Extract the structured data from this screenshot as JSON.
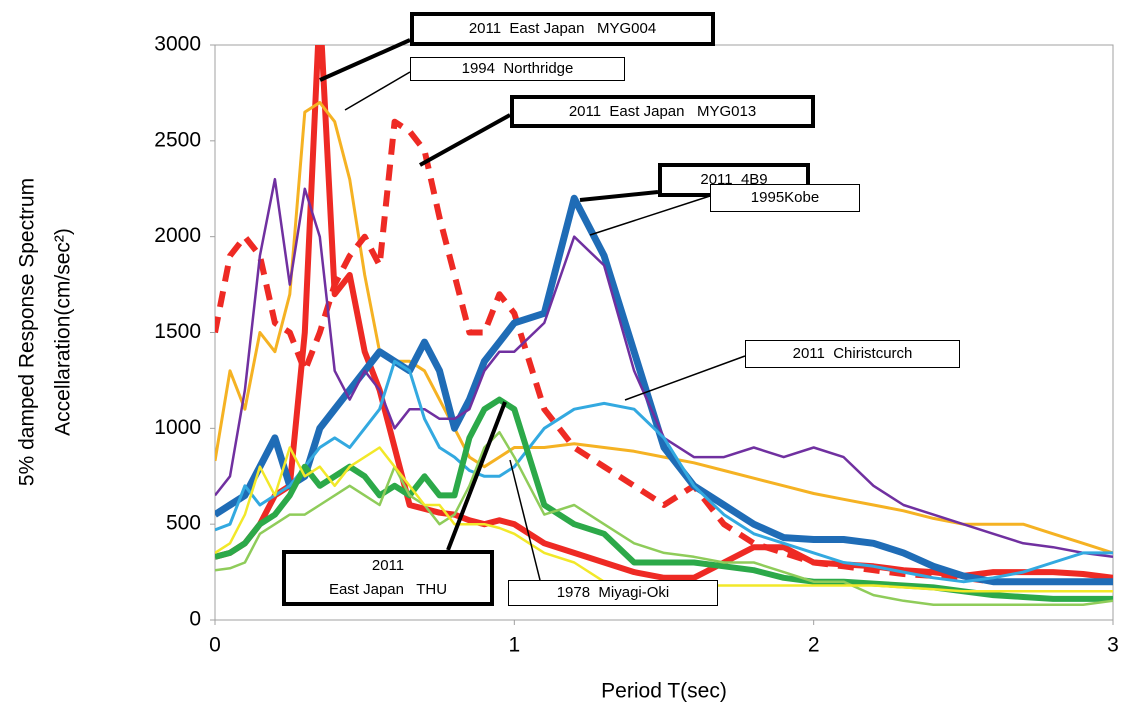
{
  "chart_data": {
    "type": "line",
    "x_label": "Period T(sec)",
    "y_label": [
      "5% damped Response Spectrum",
      "Accellaration(cm/sec²)"
    ],
    "x": [
      0,
      0.05,
      0.1,
      0.15,
      0.2,
      0.25,
      0.3,
      0.35,
      0.4,
      0.45,
      0.5,
      0.55,
      0.6,
      0.65,
      0.7,
      0.75,
      0.8,
      0.85,
      0.9,
      0.95,
      1.0,
      1.1,
      1.2,
      1.3,
      1.4,
      1.5,
      1.6,
      1.7,
      1.8,
      1.9,
      2.0,
      2.1,
      2.2,
      2.3,
      2.4,
      2.5,
      2.6,
      2.7,
      2.8,
      2.9,
      3.0
    ],
    "xlim": [
      0,
      3
    ],
    "xticks": [
      0,
      1,
      2,
      3
    ],
    "ylim": [
      0,
      3000
    ],
    "yticks": [
      0,
      500,
      1000,
      1500,
      2000,
      2500,
      3000
    ],
    "grid": false,
    "series": [
      {
        "name": "2011  East Japan   MYG004",
        "color": "#ee2a24",
        "values": [
          330,
          350,
          400,
          500,
          650,
          700,
          1500,
          3200,
          1700,
          1800,
          1400,
          1200,
          900,
          600,
          580,
          560,
          550,
          520,
          500,
          520,
          500,
          400,
          350,
          300,
          250,
          220,
          220,
          300,
          380,
          380,
          300,
          290,
          280,
          260,
          250,
          230,
          250,
          250,
          250,
          240,
          220
        ]
      },
      {
        "name": "1994  Northridge",
        "color": "#f5b223",
        "values": [
          830,
          1300,
          1100,
          1500,
          1400,
          1700,
          2650,
          2700,
          2600,
          2300,
          1800,
          1400,
          1350,
          1350,
          1300,
          1150,
          1000,
          850,
          800,
          850,
          900,
          900,
          920,
          900,
          880,
          850,
          820,
          780,
          740,
          700,
          660,
          630,
          600,
          570,
          530,
          500,
          500,
          500,
          450,
          400,
          350
        ]
      },
      {
        "name": "2011  East Japan   MYG013",
        "color": "#ee2a24",
        "dashed": true,
        "values": [
          1500,
          1900,
          2000,
          1900,
          1550,
          1500,
          1300,
          1500,
          1750,
          1900,
          2000,
          1850,
          2600,
          2550,
          2450,
          2100,
          1800,
          1500,
          1500,
          1700,
          1600,
          1100,
          900,
          800,
          700,
          600,
          700,
          500,
          400,
          350,
          300,
          280,
          260,
          240,
          230,
          220,
          200,
          200,
          200,
          200,
          200
        ]
      },
      {
        "name": "2011  4B9",
        "color": "#1f6cb6",
        "values": [
          550,
          600,
          650,
          800,
          950,
          700,
          750,
          1000,
          1100,
          1200,
          1300,
          1400,
          1350,
          1300,
          1450,
          1300,
          1000,
          1150,
          1350,
          1450,
          1550,
          1600,
          2200,
          1900,
          1400,
          900,
          700,
          600,
          500,
          430,
          420,
          420,
          400,
          350,
          280,
          230,
          200,
          200,
          200,
          200,
          200
        ]
      },
      {
        "name": "1995Kobe",
        "color": "#7030a0",
        "values": [
          650,
          750,
          1200,
          1900,
          2300,
          1750,
          2250,
          2000,
          1300,
          1150,
          1300,
          1200,
          1000,
          1100,
          1100,
          1050,
          1050,
          1100,
          1300,
          1400,
          1400,
          1550,
          2000,
          1850,
          1300,
          950,
          850,
          850,
          900,
          850,
          900,
          850,
          700,
          600,
          550,
          500,
          450,
          400,
          380,
          350,
          330
        ]
      },
      {
        "name": "2011  Chiristcurch",
        "color": "#33a9e0",
        "values": [
          470,
          500,
          700,
          600,
          650,
          700,
          800,
          900,
          950,
          900,
          1000,
          1100,
          1350,
          1300,
          1050,
          900,
          850,
          780,
          750,
          750,
          800,
          1000,
          1100,
          1130,
          1100,
          950,
          700,
          550,
          450,
          400,
          350,
          300,
          280,
          250,
          220,
          200,
          220,
          250,
          300,
          350,
          350
        ]
      },
      {
        "name": "2011\nEast Japan   THU",
        "color": "#2ca949",
        "values": [
          330,
          350,
          400,
          500,
          550,
          650,
          800,
          700,
          750,
          800,
          750,
          650,
          700,
          650,
          750,
          650,
          650,
          950,
          1100,
          1150,
          1100,
          600,
          500,
          450,
          300,
          300,
          300,
          280,
          260,
          220,
          200,
          200,
          190,
          180,
          170,
          150,
          130,
          120,
          110,
          110,
          110
        ]
      },
      {
        "name": "1978  Miyagi-Oki",
        "color": "#8fcc5a",
        "values": [
          260,
          270,
          300,
          450,
          500,
          550,
          550,
          600,
          650,
          700,
          650,
          600,
          800,
          650,
          600,
          500,
          550,
          700,
          900,
          980,
          850,
          550,
          600,
          500,
          400,
          350,
          330,
          300,
          300,
          250,
          200,
          200,
          130,
          100,
          80,
          80,
          80,
          80,
          80,
          80,
          100
        ]
      },
      {
        "color": "#f2e829",
        "values": [
          350,
          400,
          550,
          800,
          650,
          900,
          750,
          800,
          700,
          800,
          850,
          900,
          800,
          700,
          600,
          600,
          500,
          500,
          500,
          480,
          450,
          350,
          300,
          200,
          180,
          180,
          180,
          180,
          180,
          180,
          180,
          180,
          180,
          170,
          160,
          150,
          150,
          150,
          150,
          150,
          150
        ]
      }
    ]
  }
}
